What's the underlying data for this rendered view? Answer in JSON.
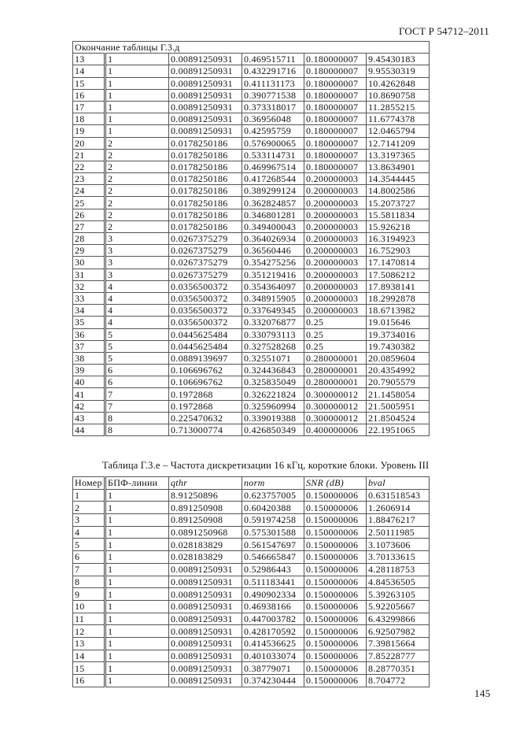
{
  "header": {
    "standard": "ГОСТ Р 54712–2011"
  },
  "page_number": "145",
  "table1": {
    "caption": "Окончание таблицы Г.3.д",
    "rows": [
      [
        "13",
        "1",
        "0.00891250931",
        "0.469515711",
        "0.180000007",
        "9.45430183"
      ],
      [
        "14",
        "1",
        "0.00891250931",
        "0.432291716",
        "0.180000007",
        "9.95530319"
      ],
      [
        "15",
        "1",
        "0.00891250931",
        "0.411131173",
        "0.180000007",
        "10.4262848"
      ],
      [
        "16",
        "1",
        "0.00891250931",
        "0.390771538",
        "0.180000007",
        "10.8690758"
      ],
      [
        "17",
        "1",
        "0.00891250931",
        "0.373318017",
        "0.180000007",
        "11.2855215"
      ],
      [
        "18",
        "1",
        "0.00891250931",
        "0.36956048",
        "0.180000007",
        "11.6774378"
      ],
      [
        "19",
        "1",
        "0.00891250931",
        "0.42595759",
        "0.180000007",
        "12.0465794"
      ],
      [
        "20",
        "2",
        "0.0178250186",
        "0.576900065",
        "0.180000007",
        "12.7141209"
      ],
      [
        "21",
        "2",
        "0.0178250186",
        "0.533114731",
        "0.180000007",
        "13.3197365"
      ],
      [
        "22",
        "2",
        "0.0178250186",
        "0.469967514",
        "0.180000007",
        "13.8634901"
      ],
      [
        "23",
        "2",
        "0.0178250186",
        "0.417268544",
        "0.200000003",
        "14.3544445"
      ],
      [
        "24",
        "2",
        "0.0178250186",
        "0.389299124",
        "0.200000003",
        "14.8002586"
      ],
      [
        "25",
        "2",
        "0.0178250186",
        "0.362824857",
        "0.200000003",
        "15.2073727"
      ],
      [
        "26",
        "2",
        "0.0178250186",
        "0.346801281",
        "0.200000003",
        "15.5811834"
      ],
      [
        "27",
        "2",
        "0.0178250186",
        "0.349400043",
        "0.200000003",
        "15.926218"
      ],
      [
        "28",
        "3",
        "0.0267375279",
        "0.364026934",
        "0.200000003",
        "16.3194923"
      ],
      [
        "29",
        "3",
        "0.0267375279",
        "0.36560446",
        "0.200000003",
        "16.752903"
      ],
      [
        "30",
        "3",
        "0.0267375279",
        "0.354275256",
        "0.200000003",
        "17.1470814"
      ],
      [
        "31",
        "3",
        "0.0267375279",
        "0.351219416",
        "0.200000003",
        "17.5086212"
      ],
      [
        "32",
        "4",
        "0.0356500372",
        "0.354364097",
        "0.200000003",
        "17.8938141"
      ],
      [
        "33",
        "4",
        "0.0356500372",
        "0.348915905",
        "0.200000003",
        "18.2992878"
      ],
      [
        "34",
        "4",
        "0.0356500372",
        "0.337649345",
        "0.200000003",
        "18.6713982"
      ],
      [
        "35",
        "4",
        "0.0356500372",
        "0.332076877",
        "0.25",
        "19.015646"
      ],
      [
        "36",
        "5",
        "0.0445625484",
        "0.330793113",
        "0.25",
        "19.3734016"
      ],
      [
        "37",
        "5",
        "0.0445625484",
        "0.327528268",
        "0.25",
        "19.7430382"
      ],
      [
        "38",
        "5",
        "0.0889139697",
        "0.32551071",
        "0.280000001",
        "20.0859604"
      ],
      [
        "39",
        "6",
        "0.106696762",
        "0.324436843",
        "0.280000001",
        "20.4354992"
      ],
      [
        "40",
        "6",
        "0.106696762",
        "0.325835049",
        "0.280000001",
        "20.7905579"
      ],
      [
        "41",
        "7",
        "0.1972868",
        "0.326221824",
        "0.300000012",
        "21.1458054"
      ],
      [
        "42",
        "7",
        "0.1972868",
        "0.325960994",
        "0.300000012",
        "21.5005951"
      ],
      [
        "43",
        "8",
        "0.225470632",
        "0.339019388",
        "0.300000012",
        "21.8504524"
      ],
      [
        "44",
        "8",
        "0.713000774",
        "0.426850349",
        "0.400000006",
        "22.1951065"
      ]
    ]
  },
  "table2": {
    "title": "Таблица Г.3.е – Частота дискретизации 16 кГц, короткие блоки. Уровень III",
    "headers": [
      "Номер",
      "БПФ-линии",
      "qthr",
      "norm",
      "SNR (dB)",
      "bval"
    ],
    "rows": [
      [
        "1",
        "1",
        "8.91250896",
        "0.623757005",
        "0.150000006",
        "0.631518543"
      ],
      [
        "2",
        "1",
        "0.891250908",
        "0.60420388",
        "0.150000006",
        "1.2606914"
      ],
      [
        "3",
        "1",
        "0.891250908",
        "0.591974258",
        "0.150000006",
        "1.88476217"
      ],
      [
        "4",
        "1",
        "0.0891250968",
        "0.575301588",
        "0.150000006",
        "2.50111985"
      ],
      [
        "5",
        "1",
        "0.028183829",
        "0.561547697",
        "0.150000006",
        "3.1073606"
      ],
      [
        "6",
        "1",
        "0.028183829",
        "0.546665847",
        "0.150000006",
        "3.70133615"
      ],
      [
        "7",
        "1",
        "0.00891250931",
        "0.52986443",
        "0.150000006",
        "4.28118753"
      ],
      [
        "8",
        "1",
        "0.00891250931",
        "0.511183441",
        "0.150000006",
        "4.84536505"
      ],
      [
        "9",
        "1",
        "0.00891250931",
        "0.490902334",
        "0.150000006",
        "5.39263105"
      ],
      [
        "10",
        "1",
        "0.00891250931",
        "0.46938166",
        "0.150000006",
        "5.92205667"
      ],
      [
        "11",
        "1",
        "0.00891250931",
        "0.447003782",
        "0.150000006",
        "6.43299866"
      ],
      [
        "12",
        "1",
        "0.00891250931",
        "0.428170592",
        "0.150000006",
        "6.92507982"
      ],
      [
        "13",
        "1",
        "0.00891250931",
        "0.414536625",
        "0.150000006",
        "7.39815664"
      ],
      [
        "14",
        "1",
        "0.00891250931",
        "0.401033074",
        "0.150000006",
        "7.85228777"
      ],
      [
        "15",
        "1",
        "0.00891250931",
        "0.38779071",
        "0.150000006",
        "8.28770351"
      ],
      [
        "16",
        "1",
        "0.00891250931",
        "0.374230444",
        "0.150000006",
        "8.704772"
      ]
    ]
  }
}
